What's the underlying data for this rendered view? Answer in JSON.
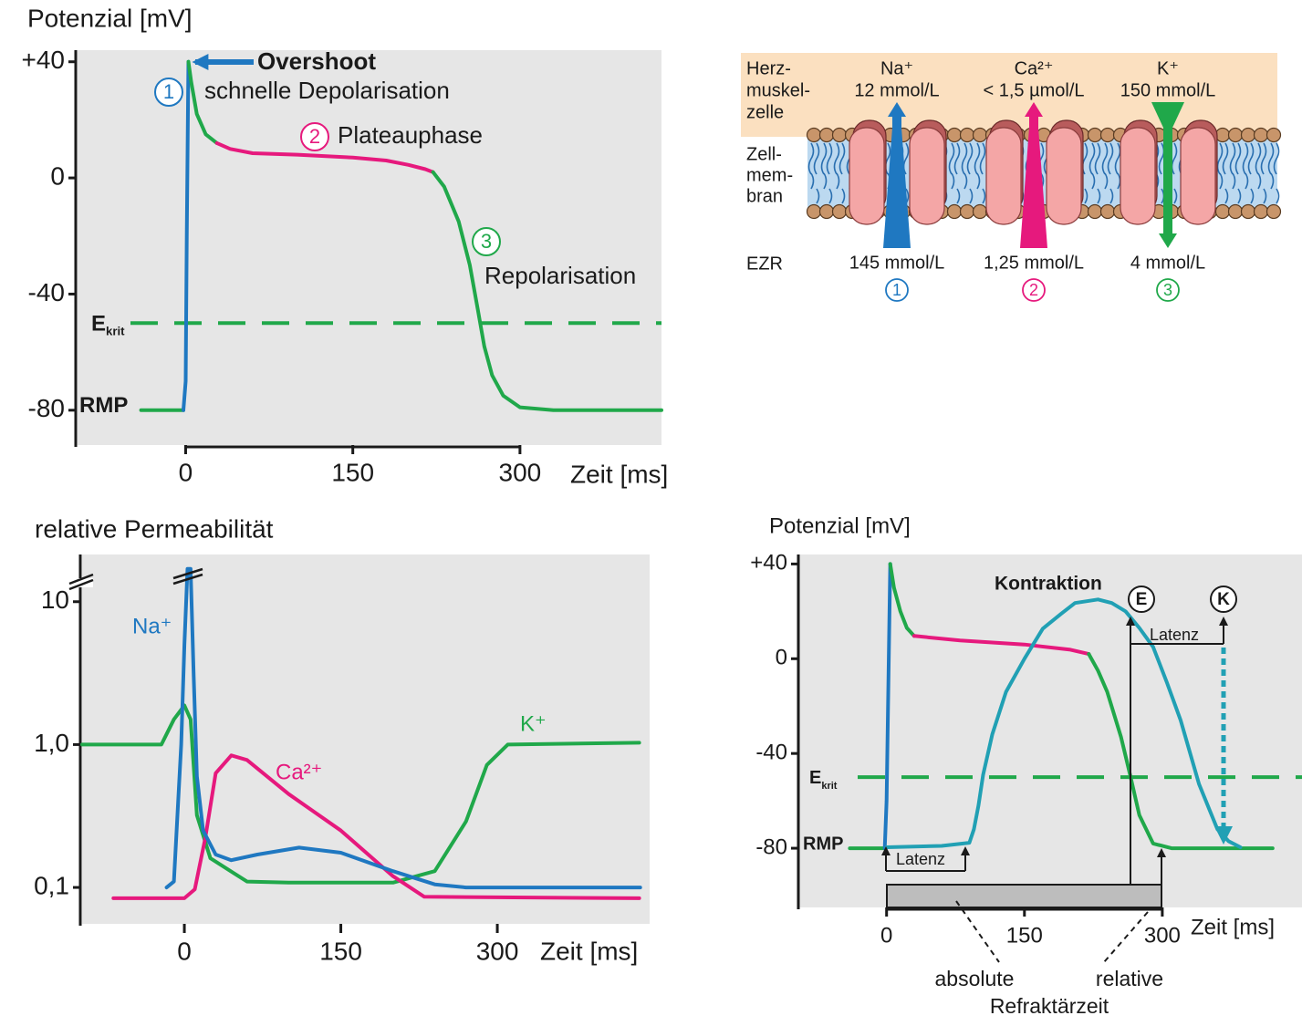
{
  "chart_data": [
    {
      "type": "line",
      "ylabel": "Potenzial [mV]",
      "xlabel": "Zeit [ms]",
      "xlim": [
        -97,
        427
      ],
      "ylim": [
        -92,
        44
      ],
      "xticks": [
        0,
        150,
        300
      ],
      "yticks": [
        {
          "value": 40,
          "label": "+40"
        },
        0,
        -40,
        -80
      ],
      "threshold": {
        "value": -50,
        "label": "E",
        "sub": "krit",
        "color": "#20a84a"
      },
      "rest_label": "RMP",
      "annotations": {
        "overshoot": "Overshoot",
        "n1": "1",
        "phase1": "schnelle Depolarisation",
        "n2": "2",
        "phase2": "Plateauphase",
        "n3": "3",
        "phase3": "Repolarisation"
      },
      "series": [
        {
          "color": "#20a84a",
          "x": [
            -40,
            -2
          ],
          "values": [
            -80,
            -80
          ]
        },
        {
          "color": "#1f78c1",
          "x": [
            -2,
            0,
            1,
            2.5
          ],
          "values": [
            -80,
            -70,
            -20,
            40
          ]
        },
        {
          "color": "#20a84a",
          "x": [
            2.5,
            5,
            10,
            18,
            28
          ],
          "values": [
            40,
            33,
            22,
            15,
            12
          ]
        },
        {
          "color": "#e6197d",
          "x": [
            28,
            40,
            60,
            100,
            150,
            180,
            200,
            215,
            222
          ],
          "values": [
            12,
            10,
            8.5,
            8,
            7,
            6,
            4.5,
            3,
            2
          ]
        },
        {
          "color": "#20a84a",
          "x": [
            222,
            232,
            245,
            255,
            262,
            268,
            275,
            285,
            300,
            330,
            427
          ],
          "values": [
            2,
            -3,
            -15,
            -30,
            -45,
            -58,
            -68,
            -75,
            -79,
            -80,
            -80
          ]
        }
      ]
    },
    {
      "type": "line",
      "ylabel": "relative Permeabilität",
      "xlabel": "Zeit [ms]",
      "yscale": "log",
      "xlim": [
        -98,
        446
      ],
      "ylim": [
        0.0556,
        21.4
      ],
      "xticks": [
        0,
        150,
        300
      ],
      "yticks": [
        10,
        {
          "value": 1,
          "label": "1,0"
        },
        {
          "value": 0.1,
          "label": "0,1"
        }
      ],
      "series": [
        {
          "name": "K⁺",
          "color": "#20a84a",
          "x": [
            -98,
            -22,
            -10,
            0,
            6,
            12,
            25,
            60,
            100,
            200,
            240,
            270,
            290,
            310,
            436
          ],
          "values": [
            1,
            1,
            1.5,
            1.88,
            1.5,
            0.32,
            0.16,
            0.11,
            0.108,
            0.108,
            0.13,
            0.29,
            0.72,
            1,
            1.03
          ]
        },
        {
          "name": "Ca²⁺",
          "color": "#e6197d",
          "x": [
            -68,
            0,
            10,
            20,
            30,
            45,
            60,
            100,
            150,
            200,
            230,
            436
          ],
          "values": [
            0.084,
            0.084,
            0.097,
            0.22,
            0.63,
            0.84,
            0.78,
            0.45,
            0.25,
            0.12,
            0.086,
            0.084
          ]
        },
        {
          "name": "Na⁺",
          "color": "#1f78c1",
          "x": [
            -17,
            -10,
            -3,
            0,
            3,
            6,
            9,
            12,
            18,
            30,
            45,
            70,
            110,
            150,
            200,
            240,
            270,
            437
          ],
          "values": [
            0.1,
            0.11,
            1,
            5,
            17,
            17,
            3,
            0.6,
            0.25,
            0.17,
            0.155,
            0.17,
            0.19,
            0.175,
            0.13,
            0.105,
            0.1,
            0.1
          ]
        }
      ]
    },
    {
      "type": "line",
      "ylabel": "Potenzial [mV]",
      "xlabel": "Zeit [ms]",
      "xlim": [
        -96,
        452
      ],
      "ylim": [
        -105,
        44
      ],
      "xticks": [
        0,
        150,
        300
      ],
      "yticks": [
        {
          "value": 40,
          "label": "+40"
        },
        0,
        -40,
        -80
      ],
      "threshold": {
        "value": -50,
        "label": "E",
        "sub": "krit",
        "color": "#20a84a"
      },
      "rest_label": "RMP",
      "annotations": {
        "contraction": "Kontraktion",
        "excitation_mark": "E",
        "contraction_mark": "K",
        "latency_excitation": "Latenz",
        "latency_contraction": "Latenz",
        "absolute": "absolute",
        "relative": "relative",
        "refractory": "Refraktärzeit"
      },
      "series": [
        {
          "color": "#20a84a",
          "x": [
            -40,
            -2
          ],
          "values": [
            -80,
            -80
          ]
        },
        {
          "color": "#1f78c1",
          "x": [
            -2,
            0,
            2,
            4
          ],
          "values": [
            -80,
            -60,
            -10,
            40
          ]
        },
        {
          "color": "#20a84a",
          "x": [
            4,
            8,
            15,
            22,
            30
          ],
          "values": [
            40,
            30,
            20,
            13,
            9.6
          ]
        },
        {
          "color": "#e6197d",
          "x": [
            30,
            80,
            150,
            200,
            220
          ],
          "values": [
            9.6,
            7.7,
            6,
            3.8,
            2
          ]
        },
        {
          "color": "#20a84a",
          "x": [
            220,
            230,
            240,
            255,
            265,
            275,
            290,
            310,
            420
          ],
          "values": [
            2,
            -5,
            -14,
            -33,
            -49,
            -66,
            -78,
            -80,
            -80
          ]
        },
        {
          "color": "#21a0b4",
          "x": [
            0,
            60,
            90,
            95,
            100,
            105,
            115,
            130,
            150,
            170,
            190,
            205,
            230,
            245,
            260,
            275,
            290,
            305,
            320,
            340,
            360,
            372,
            385
          ],
          "values": [
            -79.6,
            -79,
            -77.7,
            -72,
            -62,
            -49,
            -32,
            -14,
            0,
            12.7,
            19,
            23.5,
            25,
            23.5,
            20,
            13,
            5,
            -10,
            -26,
            -53,
            -72,
            -77,
            -79.6
          ]
        }
      ]
    }
  ],
  "diagram": {
    "compartments": {
      "cell": [
        "Herz-",
        "muskel-",
        "zelle"
      ],
      "membrane": [
        "Zell-",
        "mem-",
        "bran"
      ],
      "ecf": "EZR"
    },
    "channels": [
      {
        "ion": "Na⁺",
        "inside": "12 mmol/L",
        "outside": "145 mmol/L",
        "number": "1",
        "color": "#1f78c1",
        "direction": "in"
      },
      {
        "ion": "Ca²⁺",
        "inside": "< 1,5 µmol/L",
        "outside": "1,25 mmol/L",
        "number": "2",
        "color": "#e6197d",
        "direction": "in"
      },
      {
        "ion": "K⁺",
        "inside": "150 mmol/L",
        "outside": "4 mmol/L",
        "number": "3",
        "color": "#20a84a",
        "direction": "out"
      }
    ]
  }
}
